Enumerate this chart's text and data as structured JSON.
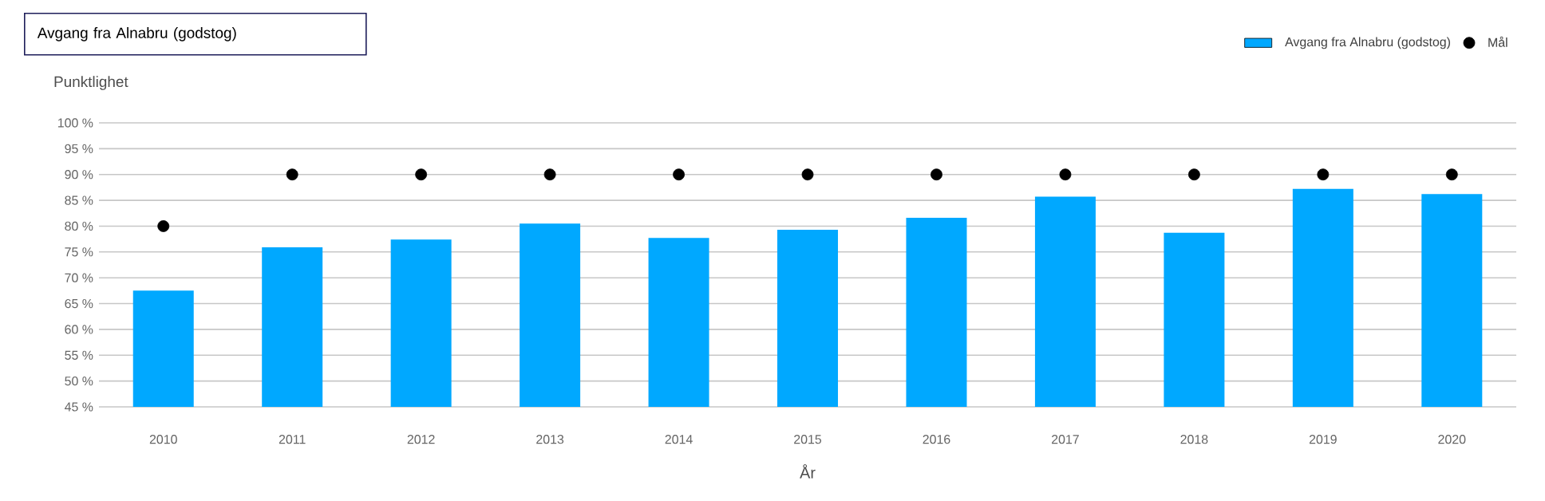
{
  "chart_data": {
    "type": "bar",
    "title": "Avgang fra Alnabru (godstog)",
    "ylabel": "Punktlighet",
    "xlabel": "År",
    "categories": [
      "2010",
      "2011",
      "2012",
      "2013",
      "2014",
      "2015",
      "2016",
      "2017",
      "2018",
      "2019",
      "2020"
    ],
    "series": [
      {
        "name": "Avgang fra Alnabru (godstog)",
        "color": "#00a8ff",
        "values": [
          67.5,
          75.9,
          77.4,
          80.5,
          77.7,
          79.3,
          81.6,
          85.7,
          78.7,
          87.2,
          86.2
        ]
      },
      {
        "name": "Mål",
        "type": "scatter",
        "color": "#000000",
        "values": [
          80,
          90,
          90,
          90,
          90,
          90,
          90,
          90,
          90,
          90,
          90
        ]
      }
    ],
    "ylim": [
      45,
      100
    ],
    "yticks": [
      {
        "value": 45,
        "label": "45 %"
      },
      {
        "value": 50,
        "label": "50 %"
      },
      {
        "value": 55,
        "label": "55 %"
      },
      {
        "value": 60,
        "label": "60 %"
      },
      {
        "value": 65,
        "label": "65 %"
      },
      {
        "value": 70,
        "label": "70 %"
      },
      {
        "value": 75,
        "label": "75 %"
      },
      {
        "value": 80,
        "label": "80 %"
      },
      {
        "value": 85,
        "label": "85 %"
      },
      {
        "value": 90,
        "label": "90 %"
      },
      {
        "value": 95,
        "label": "95 %"
      },
      {
        "value": 100,
        "label": "100 %"
      }
    ],
    "grid": "y",
    "legend": "top right"
  }
}
